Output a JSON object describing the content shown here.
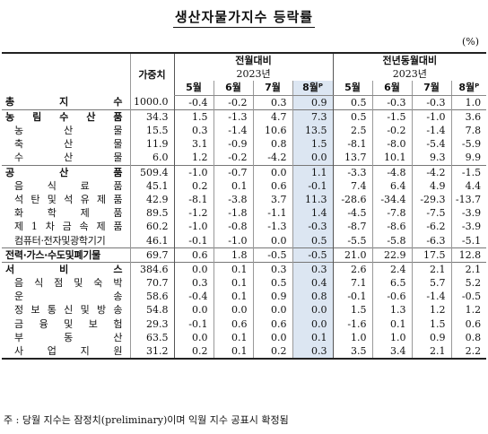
{
  "title": "생산자물가지수 등락률",
  "unit": "(%)",
  "headers": {
    "weight": "가중치",
    "mom": "전월대비",
    "yoy": "전년동월대비",
    "year": "2023년",
    "months": [
      "5월",
      "6월",
      "7월",
      "8월ᴾ"
    ]
  },
  "rows": [
    {
      "name": "총 지 수",
      "weight": "1000.0",
      "mom": [
        "-0.4",
        "-0.2",
        "0.3",
        "0.9"
      ],
      "yoy": [
        "0.5",
        "-0.3",
        "-0.3",
        "1.0"
      ]
    },
    {
      "name": "농 림 수 산 품",
      "weight": "34.3",
      "mom": [
        "1.5",
        "-1.3",
        "4.7",
        "7.3"
      ],
      "yoy": [
        "0.5",
        "-1.5",
        "-1.0",
        "3.6"
      ]
    },
    {
      "name": "농 산 물",
      "weight": "15.5",
      "mom": [
        "0.3",
        "-1.4",
        "10.6",
        "13.5"
      ],
      "yoy": [
        "2.5",
        "-0.2",
        "-1.4",
        "7.8"
      ]
    },
    {
      "name": "축 산 물",
      "weight": "11.9",
      "mom": [
        "3.1",
        "-0.9",
        "0.8",
        "1.5"
      ],
      "yoy": [
        "-8.1",
        "-8.0",
        "-5.4",
        "-5.9"
      ]
    },
    {
      "name": "수 산 물",
      "weight": "6.0",
      "mom": [
        "1.2",
        "-0.2",
        "-4.2",
        "0.0"
      ],
      "yoy": [
        "13.7",
        "10.1",
        "9.3",
        "9.9"
      ]
    },
    {
      "name": "공 산 품",
      "weight": "509.4",
      "mom": [
        "-1.0",
        "-0.7",
        "0.0",
        "1.1"
      ],
      "yoy": [
        "-3.3",
        "-4.8",
        "-4.2",
        "-1.5"
      ]
    },
    {
      "name": "음 식 료 품",
      "weight": "45.1",
      "mom": [
        "0.2",
        "0.1",
        "0.6",
        "-0.1"
      ],
      "yoy": [
        "7.4",
        "6.4",
        "4.9",
        "4.4"
      ]
    },
    {
      "name": "석 탄 및 석 유 제 품",
      "weight": "42.9",
      "mom": [
        "-8.1",
        "-3.8",
        "3.7",
        "11.3"
      ],
      "yoy": [
        "-28.6",
        "-34.4",
        "-29.3",
        "-13.7"
      ]
    },
    {
      "name": "화 학 제 품",
      "weight": "89.5",
      "mom": [
        "-1.2",
        "-1.8",
        "-1.1",
        "1.4"
      ],
      "yoy": [
        "-4.5",
        "-7.8",
        "-7.5",
        "-3.9"
      ]
    },
    {
      "name": "제 1 차 금 속 제 품",
      "weight": "60.2",
      "mom": [
        "-1.0",
        "-0.8",
        "-1.3",
        "-0.3"
      ],
      "yoy": [
        "-8.7",
        "-8.6",
        "-6.2",
        "-3.9"
      ]
    },
    {
      "name": "컴퓨터·전자및광학기기",
      "weight": "46.1",
      "mom": [
        "-0.1",
        "-1.0",
        "0.0",
        "0.5"
      ],
      "yoy": [
        "-5.5",
        "-5.8",
        "-6.3",
        "-5.1"
      ]
    },
    {
      "name": "전력·가스·수도및폐기물",
      "weight": "69.7",
      "mom": [
        "0.6",
        "1.8",
        "-0.5",
        "-0.5"
      ],
      "yoy": [
        "21.0",
        "22.9",
        "17.5",
        "12.8"
      ]
    },
    {
      "name": "서 비 스",
      "weight": "384.6",
      "mom": [
        "0.0",
        "0.1",
        "0.3",
        "0.3"
      ],
      "yoy": [
        "2.6",
        "2.4",
        "2.1",
        "2.1"
      ]
    },
    {
      "name": "음 식 점 및 숙 박",
      "weight": "70.7",
      "mom": [
        "0.3",
        "0.1",
        "0.5",
        "0.4"
      ],
      "yoy": [
        "7.1",
        "6.5",
        "5.7",
        "5.2"
      ]
    },
    {
      "name": "운 송",
      "weight": "58.6",
      "mom": [
        "-0.4",
        "0.1",
        "0.9",
        "0.8"
      ],
      "yoy": [
        "-0.1",
        "-0.6",
        "-1.4",
        "-0.5"
      ]
    },
    {
      "name": "정 보 통 신 및 방 송",
      "weight": "54.8",
      "mom": [
        "0.0",
        "0.0",
        "0.0",
        "0.0"
      ],
      "yoy": [
        "1.5",
        "1.3",
        "1.2",
        "1.2"
      ]
    },
    {
      "name": "금 융 및 보 험",
      "weight": "29.3",
      "mom": [
        "-0.1",
        "0.6",
        "0.6",
        "0.0"
      ],
      "yoy": [
        "-1.6",
        "0.1",
        "1.5",
        "0.6"
      ]
    },
    {
      "name": "부 동 산",
      "weight": "63.5",
      "mom": [
        "0.0",
        "0.1",
        "0.0",
        "0.1"
      ],
      "yoy": [
        "1.0",
        "1.0",
        "0.9",
        "0.8"
      ]
    },
    {
      "name": "사 업 지 원",
      "weight": "31.2",
      "mom": [
        "0.2",
        "0.1",
        "0.2",
        "0.3"
      ],
      "yoy": [
        "3.5",
        "3.4",
        "2.1",
        "2.2"
      ]
    }
  ],
  "note": "주 : 당월 지수는 잠정치(preliminary)이며 익월 지수 공표시 확정됨",
  "colors": {
    "highlight": "#dce6f2"
  }
}
